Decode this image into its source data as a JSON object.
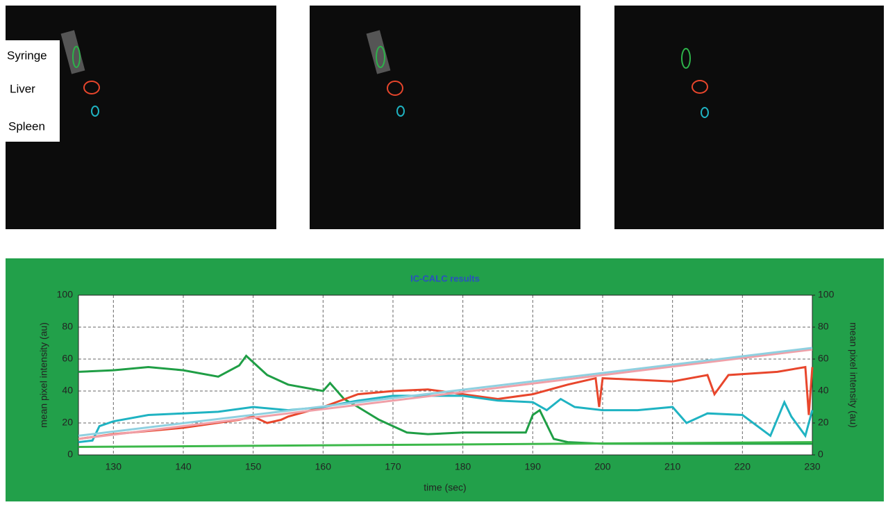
{
  "images": {
    "labels": [
      "Syringe",
      "Liver",
      "Spleen"
    ]
  },
  "chart_data": {
    "type": "line",
    "title": "IC-CALC results",
    "x_label": "time (sec)",
    "y_label": "mean pixel intensity (au)",
    "y2_label": "mean pixel intensity (au)",
    "xlim": [
      125,
      230
    ],
    "xticks": [
      130,
      140,
      150,
      160,
      170,
      180,
      190,
      200,
      210,
      220,
      230
    ],
    "ylim": [
      0,
      100
    ],
    "yticks": [
      0,
      20,
      40,
      60,
      80,
      100
    ],
    "y2lim": [
      0,
      100
    ],
    "y2ticks": [
      0,
      20,
      40,
      60,
      80,
      100
    ],
    "grid": true,
    "series": [
      {
        "color": "#1f9e45",
        "x": [
          125,
          130,
          135,
          140,
          145,
          148,
          149,
          152,
          155,
          160,
          161,
          163,
          165,
          168,
          172,
          175,
          180,
          185,
          189,
          190,
          191,
          193,
          195,
          200,
          210,
          220,
          230
        ],
        "values": [
          52,
          53,
          55,
          53,
          49,
          56,
          62,
          50,
          44,
          40,
          45,
          35,
          30,
          22,
          14,
          13,
          14,
          14,
          14,
          25,
          28,
          10,
          8,
          7,
          7,
          7,
          7
        ]
      },
      {
        "color": "#e8462c",
        "x": [
          125,
          130,
          140,
          148,
          150,
          152,
          154,
          155,
          160,
          165,
          170,
          175,
          180,
          185,
          190,
          195,
          199,
          199.5,
          200,
          210,
          215,
          216,
          218,
          225,
          229,
          229.5,
          230
        ],
        "values": [
          10,
          13,
          17,
          22,
          24,
          20,
          22,
          24,
          30,
          38,
          40,
          41,
          38,
          35,
          38,
          44,
          48,
          30,
          48,
          46,
          50,
          38,
          50,
          52,
          55,
          25,
          55
        ]
      },
      {
        "color": "#1fb3c2",
        "x": [
          125,
          127,
          128,
          130,
          135,
          140,
          145,
          150,
          155,
          160,
          165,
          170,
          175,
          180,
          185,
          190,
          192,
          194,
          196,
          200,
          205,
          210,
          212,
          215,
          220,
          224,
          226,
          227,
          229,
          230
        ],
        "values": [
          8,
          9,
          18,
          21,
          25,
          26,
          27,
          30,
          28,
          30,
          34,
          37,
          37,
          37,
          34,
          33,
          28,
          35,
          30,
          28,
          28,
          30,
          20,
          26,
          25,
          12,
          33,
          24,
          12,
          28
        ]
      },
      {
        "color": "#f0a0a8",
        "x": [
          125,
          230
        ],
        "values": [
          10,
          66
        ]
      },
      {
        "color": "#8fd0e0",
        "x": [
          125,
          230
        ],
        "values": [
          12,
          67
        ]
      },
      {
        "color": "#3cb84a",
        "x": [
          125,
          230
        ],
        "values": [
          5,
          8
        ]
      }
    ]
  }
}
